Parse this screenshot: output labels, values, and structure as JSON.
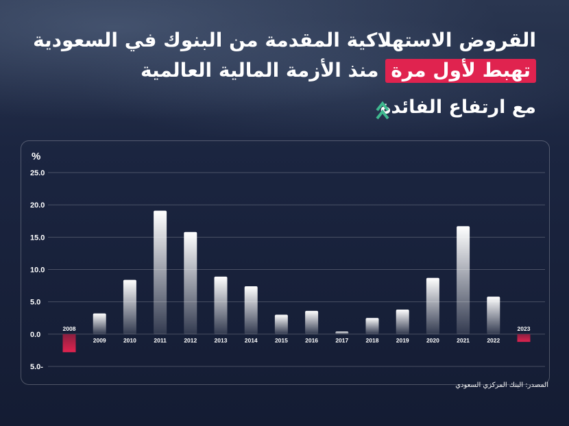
{
  "header": {
    "line1": "القروض الاستهلاكية المقدمة من البنوك في السعودية",
    "line2_highlight": "تهبط لأول مرة",
    "line2_rest": "منذ الأزمة المالية العالمية",
    "line3": "مع ارتفاع الفائدة"
  },
  "source": "المصدر: البنك المركزي السعودي",
  "colors": {
    "positive_bar": "#ffffff",
    "negative_bar": "#e0234f",
    "highlight": "#e0234f",
    "accent_arrow": "#3fb98f"
  },
  "chart_data": {
    "type": "bar",
    "ylabel": "%",
    "ylim": [
      -5,
      25
    ],
    "yticks": [
      "25.0",
      "20.0",
      "15.0",
      "10.0",
      "5.0",
      "0.0",
      "5.0-"
    ],
    "ytick_values": [
      25,
      20,
      15,
      10,
      5,
      0,
      -5
    ],
    "grid": true,
    "categories": [
      "2008",
      "2009",
      "2010",
      "2011",
      "2012",
      "2013",
      "2014",
      "2015",
      "2016",
      "2017",
      "2018",
      "2019",
      "2020",
      "2021",
      "2022",
      "2023"
    ],
    "values": [
      -2.8,
      3.2,
      8.4,
      19.1,
      15.8,
      8.9,
      7.4,
      3.0,
      3.6,
      0.4,
      2.5,
      3.8,
      8.7,
      16.7,
      5.8,
      -1.2
    ]
  }
}
